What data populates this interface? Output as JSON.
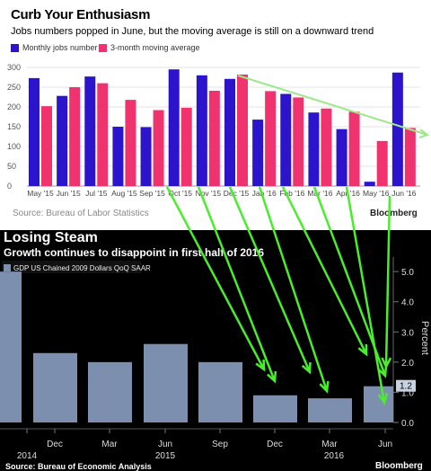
{
  "colors": {
    "jobs": "#2b14cc",
    "avg": "#f0336e",
    "gdp": "#7d8faf",
    "arrow": "#49ee2b",
    "trend": "#9ee88a"
  },
  "top": {
    "title": "Curb Your Enthusiasm",
    "subtitle": "Jobs numbers popped in June, but the moving average is still on a downward trend",
    "source": "Source: Bureau of Labor Statistics",
    "brand": "Bloomberg",
    "legend": [
      "Monthly jobs number",
      "3-month moving average"
    ]
  },
  "bottom": {
    "title": "Losing Steam",
    "subtitle": "Growth continues to disappoint in first half of 2016",
    "legend": "GDP US Chained 2009 Dollars QoQ SAAR",
    "axis_label": "Percent",
    "last_value_label": "1.2",
    "source": "Source: Bureau of Economic Analysis",
    "brand": "Bloomberg"
  },
  "chart_data": [
    {
      "type": "bar",
      "title": "Curb Your Enthusiasm",
      "categories": [
        "May '15",
        "Jun '15",
        "Jul '15",
        "Aug '15",
        "Sep '15",
        "Oct '15",
        "Nov '15",
        "Dec '15",
        "Jan '16",
        "Feb '16",
        "Mar '16",
        "Apr '16",
        "May '16",
        "Jun '16"
      ],
      "series": [
        {
          "name": "Monthly jobs number",
          "values": [
            273,
            228,
            277,
            150,
            149,
            295,
            280,
            271,
            168,
            233,
            186,
            144,
            11,
            287
          ]
        },
        {
          "name": "3-month moving average",
          "values": [
            202,
            250,
            260,
            218,
            192,
            198,
            241,
            282,
            240,
            224,
            196,
            188,
            114,
            147
          ]
        }
      ],
      "yticks": [
        0,
        50,
        100,
        150,
        200,
        250,
        300
      ],
      "ylim": [
        0,
        300
      ],
      "legend_position": "top-left",
      "grid": true
    },
    {
      "type": "bar",
      "title": "Losing Steam",
      "series": [
        {
          "name": "GDP US Chained 2009 Dollars QoQ SAAR",
          "values": [
            5.0,
            2.3,
            2.0,
            2.6,
            2.0,
            0.9,
            0.8,
            1.2
          ]
        }
      ],
      "x_tick_labels": [
        "2014",
        "Dec",
        "Mar",
        "Jun",
        "Sep",
        "Dec",
        "Mar",
        "Jun"
      ],
      "x_year_labels": [
        "2014",
        "2015",
        "2016"
      ],
      "yticks": [
        0.0,
        1.0,
        2.0,
        3.0,
        4.0,
        5.0
      ],
      "ylim": [
        0,
        5.6
      ],
      "ylabel": "Percent",
      "legend_position": "top-left"
    }
  ]
}
